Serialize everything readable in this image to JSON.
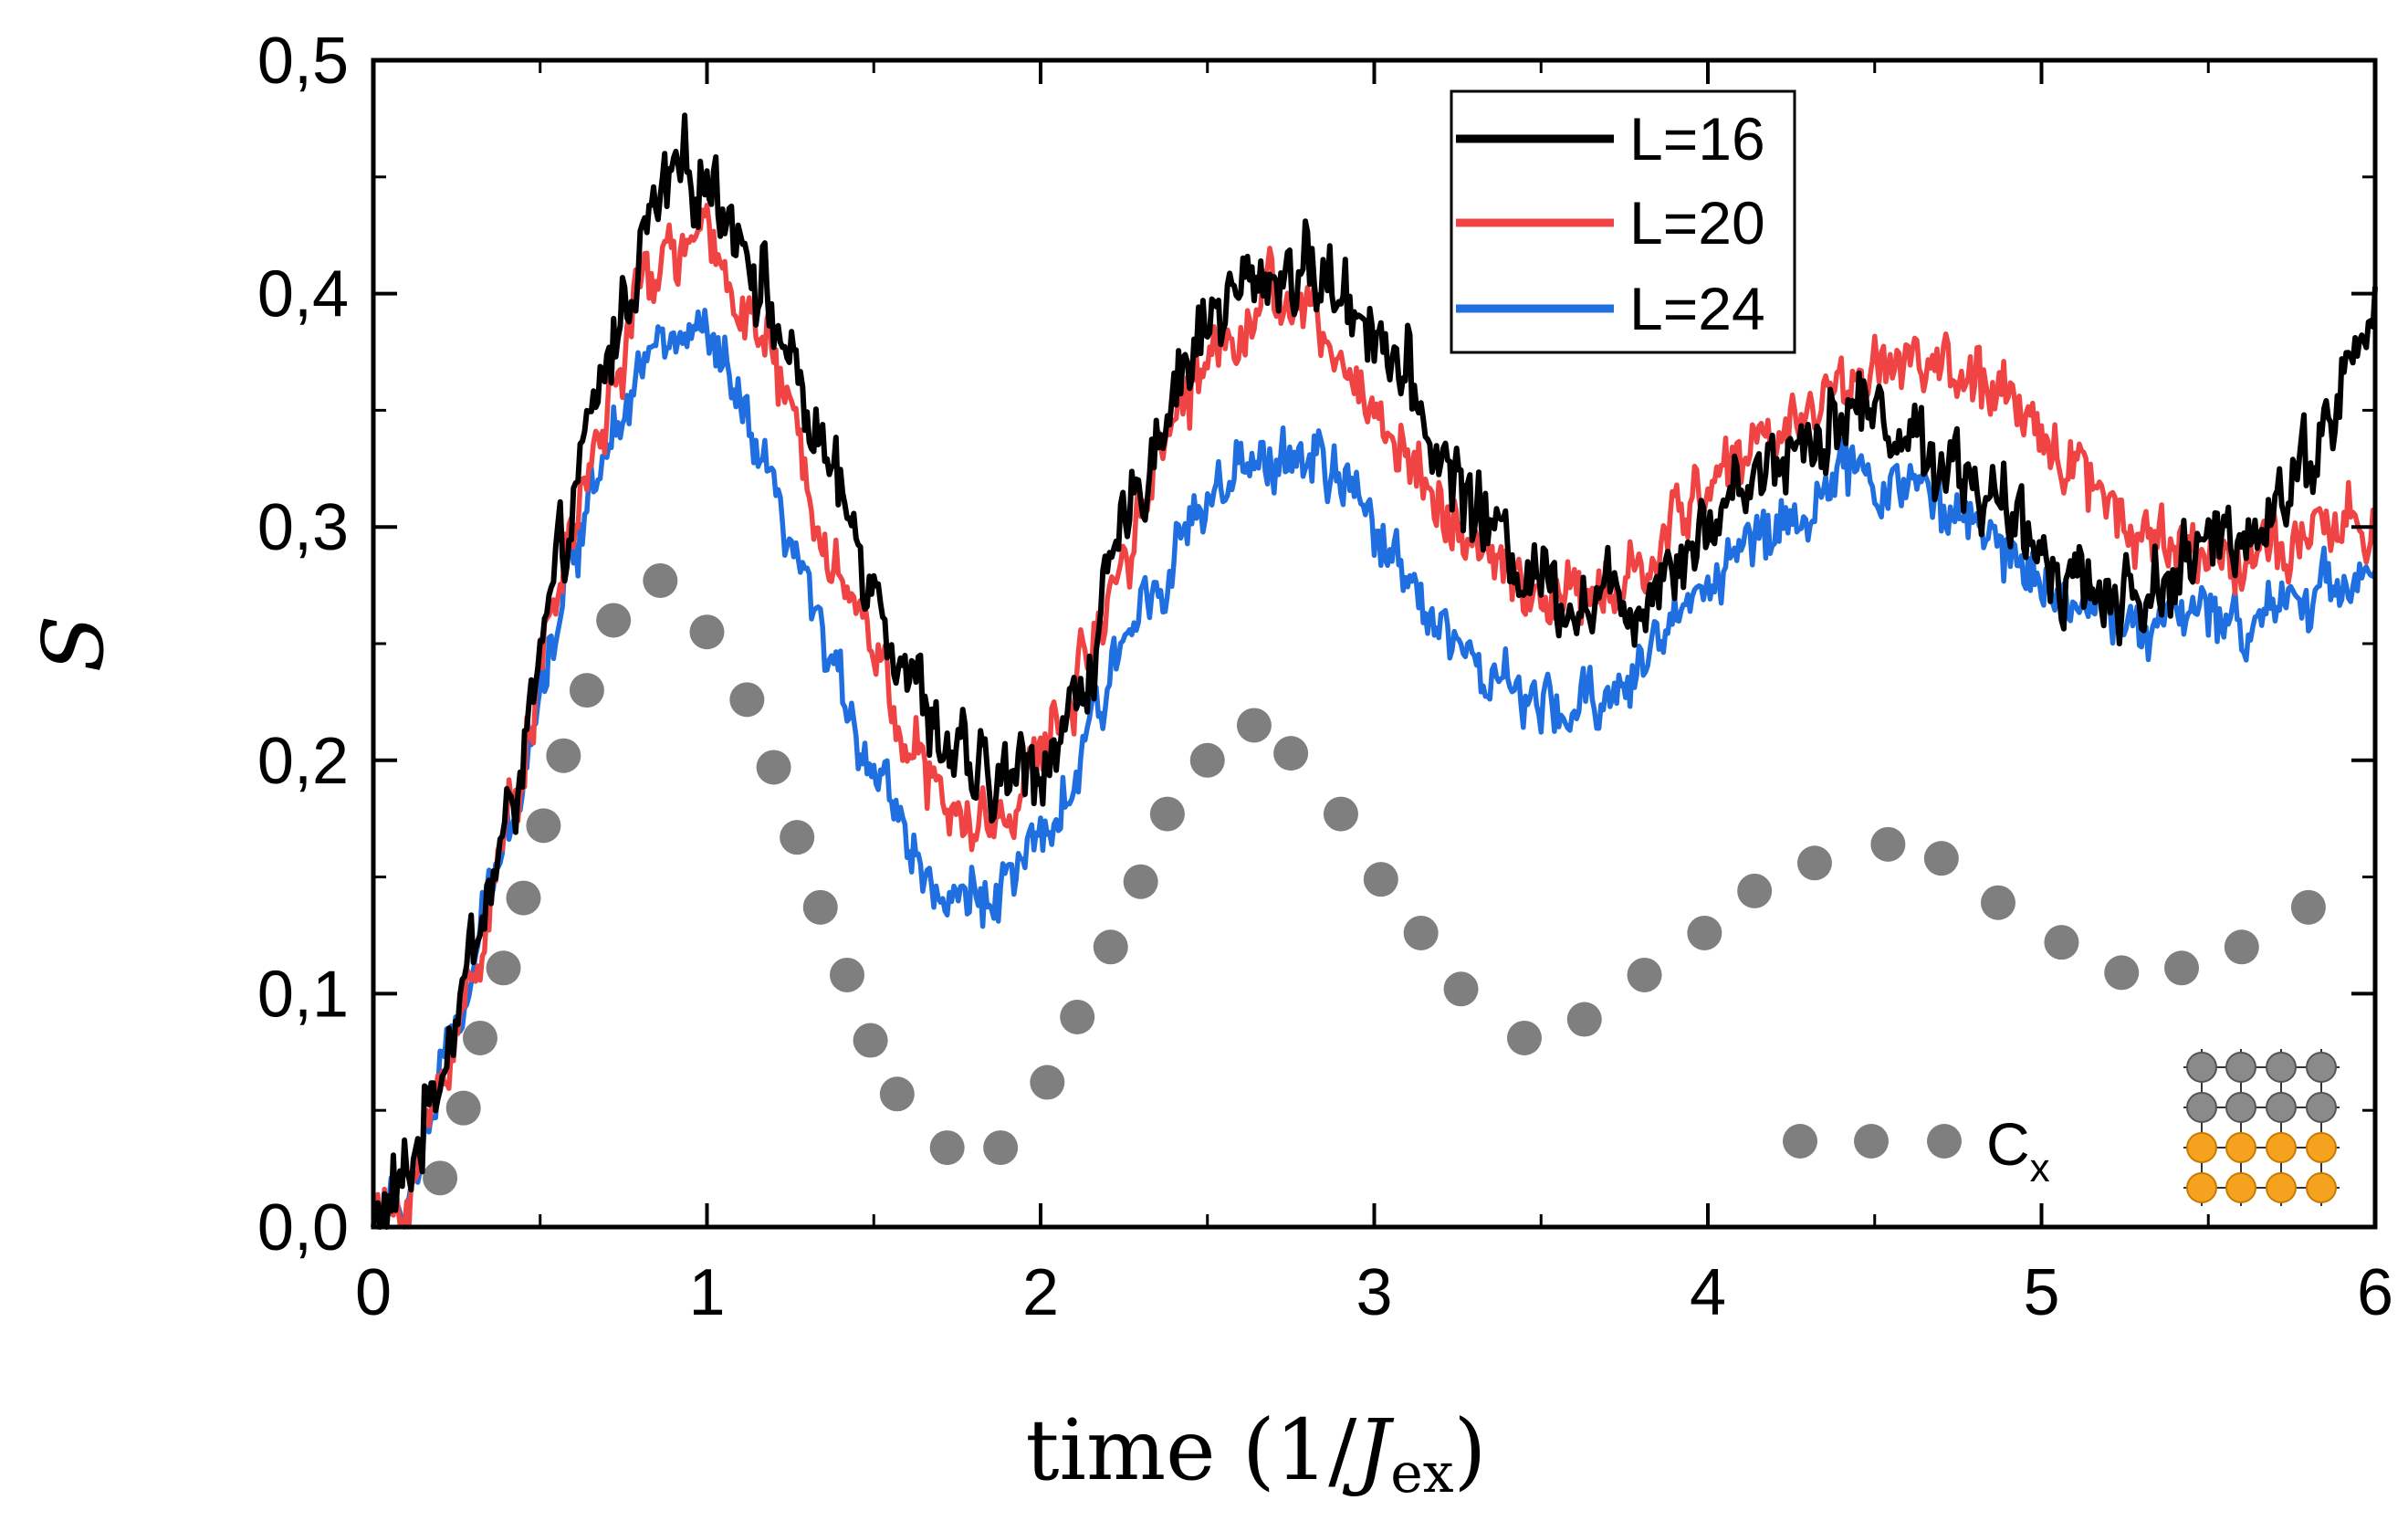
{
  "chart_data": {
    "type": "line",
    "title": "",
    "xlabel_prefix": "time (1/",
    "xlabel_var": "J",
    "xlabel_sub": "ex",
    "xlabel_suffix": ")",
    "ylabel": "S",
    "xlim": [
      0,
      6
    ],
    "ylim": [
      0,
      0.5
    ],
    "xticks": [
      0,
      1,
      2,
      3,
      4,
      5,
      6
    ],
    "xtick_labels": [
      "0",
      "1",
      "2",
      "3",
      "4",
      "5",
      "6"
    ],
    "yticks": [
      0,
      0.1,
      0.2,
      0.3,
      0.4,
      0.5
    ],
    "ytick_labels": [
      "0,0",
      "0,1",
      "0,2",
      "0,3",
      "0,4",
      "0,5"
    ],
    "grid": false,
    "legend_position": "top-center",
    "series": [
      {
        "name": "L=16",
        "color": "#000000",
        "noise": 0.022,
        "x": [
          0,
          0.1,
          0.2,
          0.3,
          0.4,
          0.5,
          0.6,
          0.7,
          0.8,
          0.9,
          1.0,
          1.1,
          1.2,
          1.3,
          1.4,
          1.5,
          1.6,
          1.7,
          1.8,
          1.9,
          2.0,
          2.1,
          2.2,
          2.3,
          2.4,
          2.5,
          2.6,
          2.7,
          2.8,
          2.9,
          3.0,
          3.1,
          3.2,
          3.3,
          3.4,
          3.5,
          3.6,
          3.7,
          3.8,
          3.9,
          4.0,
          4.1,
          4.2,
          4.3,
          4.4,
          4.5,
          4.6,
          4.7,
          4.8,
          4.9,
          5.0,
          5.1,
          5.2,
          5.3,
          5.4,
          5.5,
          5.6,
          5.7,
          5.8,
          5.9,
          6.0
        ],
        "y": [
          0.0,
          0.02,
          0.07,
          0.12,
          0.17,
          0.24,
          0.31,
          0.37,
          0.42,
          0.45,
          0.45,
          0.43,
          0.39,
          0.35,
          0.31,
          0.28,
          0.24,
          0.21,
          0.19,
          0.19,
          0.2,
          0.22,
          0.27,
          0.32,
          0.36,
          0.39,
          0.4,
          0.41,
          0.41,
          0.4,
          0.39,
          0.36,
          0.33,
          0.31,
          0.29,
          0.28,
          0.27,
          0.27,
          0.27,
          0.29,
          0.3,
          0.32,
          0.33,
          0.34,
          0.35,
          0.35,
          0.34,
          0.33,
          0.32,
          0.3,
          0.29,
          0.28,
          0.27,
          0.27,
          0.28,
          0.29,
          0.3,
          0.31,
          0.33,
          0.36,
          0.39
        ]
      },
      {
        "name": "L=20",
        "color": "#f04444",
        "noise": 0.018,
        "x": [
          0,
          0.1,
          0.2,
          0.3,
          0.4,
          0.5,
          0.6,
          0.7,
          0.8,
          0.9,
          1.0,
          1.1,
          1.2,
          1.3,
          1.4,
          1.5,
          1.6,
          1.7,
          1.8,
          1.9,
          2.0,
          2.1,
          2.2,
          2.3,
          2.4,
          2.5,
          2.6,
          2.7,
          2.8,
          2.9,
          3.0,
          3.1,
          3.2,
          3.3,
          3.4,
          3.5,
          3.6,
          3.7,
          3.8,
          3.9,
          4.0,
          4.1,
          4.2,
          4.3,
          4.4,
          4.5,
          4.6,
          4.7,
          4.8,
          4.9,
          5.0,
          5.1,
          5.2,
          5.3,
          5.4,
          5.5,
          5.6,
          5.7,
          5.8,
          5.9,
          6.0
        ],
        "y": [
          0.0,
          0.01,
          0.06,
          0.11,
          0.17,
          0.24,
          0.3,
          0.35,
          0.4,
          0.42,
          0.42,
          0.4,
          0.37,
          0.32,
          0.28,
          0.25,
          0.21,
          0.18,
          0.17,
          0.18,
          0.2,
          0.23,
          0.27,
          0.31,
          0.35,
          0.37,
          0.39,
          0.4,
          0.39,
          0.37,
          0.35,
          0.33,
          0.31,
          0.29,
          0.28,
          0.27,
          0.27,
          0.27,
          0.28,
          0.3,
          0.32,
          0.33,
          0.34,
          0.35,
          0.36,
          0.37,
          0.37,
          0.37,
          0.36,
          0.35,
          0.34,
          0.33,
          0.31,
          0.3,
          0.29,
          0.29,
          0.29,
          0.29,
          0.29,
          0.3,
          0.3
        ]
      },
      {
        "name": "L=24",
        "color": "#1f6fe0",
        "noise": 0.016,
        "x": [
          0,
          0.1,
          0.2,
          0.3,
          0.4,
          0.5,
          0.6,
          0.7,
          0.8,
          0.9,
          1.0,
          1.1,
          1.2,
          1.3,
          1.4,
          1.5,
          1.6,
          1.7,
          1.8,
          1.9,
          2.0,
          2.1,
          2.2,
          2.3,
          2.4,
          2.5,
          2.6,
          2.7,
          2.8,
          2.9,
          3.0,
          3.1,
          3.2,
          3.3,
          3.4,
          3.5,
          3.6,
          3.7,
          3.8,
          3.9,
          4.0,
          4.1,
          4.2,
          4.3,
          4.4,
          4.5,
          4.6,
          4.7,
          4.8,
          4.9,
          5.0,
          5.1,
          5.2,
          5.3,
          5.4,
          5.5,
          5.6,
          5.7,
          5.8,
          5.9,
          6.0
        ],
        "y": [
          0.0,
          0.01,
          0.06,
          0.11,
          0.17,
          0.23,
          0.29,
          0.34,
          0.37,
          0.38,
          0.38,
          0.35,
          0.31,
          0.27,
          0.23,
          0.2,
          0.17,
          0.14,
          0.14,
          0.15,
          0.16,
          0.19,
          0.23,
          0.27,
          0.29,
          0.31,
          0.32,
          0.33,
          0.33,
          0.32,
          0.3,
          0.28,
          0.26,
          0.24,
          0.23,
          0.22,
          0.22,
          0.23,
          0.24,
          0.26,
          0.28,
          0.29,
          0.3,
          0.31,
          0.32,
          0.32,
          0.32,
          0.31,
          0.3,
          0.29,
          0.28,
          0.27,
          0.26,
          0.26,
          0.26,
          0.26,
          0.26,
          0.27,
          0.27,
          0.28,
          0.28
        ]
      },
      {
        "name": "C",
        "name_sub": "x",
        "color": "#7f7f7f",
        "style": "markers",
        "x": [
          0.2,
          0.27,
          0.32,
          0.39,
          0.45,
          0.51,
          0.57,
          0.64,
          0.72,
          0.86,
          1.0,
          1.12,
          1.2,
          1.27,
          1.34,
          1.42,
          1.49,
          1.57,
          1.72,
          1.88,
          2.02,
          2.11,
          2.21,
          2.3,
          2.38,
          2.5,
          2.64,
          2.75,
          2.9,
          3.02,
          3.14,
          3.26,
          3.45,
          3.63,
          3.81,
          3.99,
          4.14,
          4.32,
          4.54,
          4.7,
          4.87,
          5.06,
          5.24,
          5.42,
          5.6,
          5.8
        ],
        "y": [
          0.021,
          0.051,
          0.081,
          0.111,
          0.141,
          0.172,
          0.202,
          0.23,
          0.26,
          0.277,
          0.255,
          0.226,
          0.197,
          0.167,
          0.137,
          0.108,
          0.08,
          0.057,
          0.034,
          0.034,
          0.062,
          0.09,
          0.12,
          0.148,
          0.177,
          0.2,
          0.215,
          0.203,
          0.177,
          0.149,
          0.126,
          0.102,
          0.081,
          0.089,
          0.108,
          0.126,
          0.144,
          0.156,
          0.164,
          0.158,
          0.139,
          0.122,
          0.109,
          0.111,
          0.12,
          0.137
        ]
      }
    ]
  }
}
